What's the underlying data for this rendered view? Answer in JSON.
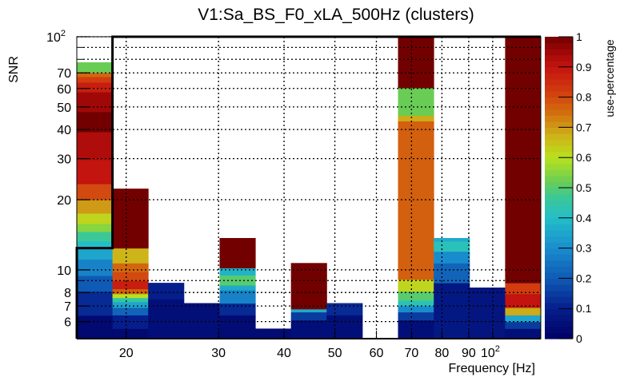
{
  "chart_data": {
    "type": "heatmap",
    "title": "V1:Sa_BS_F0_xLA_500Hz (clusters)",
    "xlabel": "Frequency [Hz]",
    "ylabel": "SNR",
    "zlabel": "use-percentage",
    "x_scale": "log",
    "y_scale": "log",
    "xlim": [
      16.1,
      123.5
    ],
    "ylim": [
      5.07,
      100
    ],
    "zlim": [
      0,
      1
    ],
    "grid": true,
    "x_ticks": [
      {
        "value": 20,
        "label": "20"
      },
      {
        "value": 30,
        "label": "30"
      },
      {
        "value": 40,
        "label": "40"
      },
      {
        "value": 50,
        "label": "50"
      },
      {
        "value": 60,
        "label": "60"
      },
      {
        "value": 70,
        "label": "70"
      },
      {
        "value": 80,
        "label": "80"
      },
      {
        "value": 90,
        "label": "90"
      },
      {
        "value": 100,
        "label": "10",
        "sup": "2"
      }
    ],
    "y_ticks": [
      {
        "value": 6,
        "label": "6"
      },
      {
        "value": 7,
        "label": "7"
      },
      {
        "value": 8,
        "label": "8"
      },
      {
        "value": 10,
        "label": "10"
      },
      {
        "value": 20,
        "label": "20"
      },
      {
        "value": 30,
        "label": "30"
      },
      {
        "value": 40,
        "label": "40"
      },
      {
        "value": 50,
        "label": "50"
      },
      {
        "value": 60,
        "label": "60"
      },
      {
        "value": 70,
        "label": "70"
      },
      {
        "value": 100,
        "label": "10",
        "sup": "2"
      }
    ],
    "z_ticks": [
      "0",
      "0.1",
      "0.2",
      "0.3",
      "0.4",
      "0.5",
      "0.6",
      "0.7",
      "0.8",
      "0.9",
      "1"
    ],
    "x_bin_edges_index": 13,
    "columns": [
      {
        "segments": [
          [
            5.07,
            6.38,
            0.03
          ],
          [
            6.38,
            8.09,
            0.12
          ],
          [
            8.09,
            9.46,
            0.2
          ],
          [
            9.46,
            11.1,
            0.28
          ],
          [
            11.1,
            12.4,
            0.35
          ],
          [
            12.4,
            13.3,
            0.4
          ],
          [
            13.3,
            14.6,
            0.47
          ],
          [
            14.6,
            15.8,
            0.55
          ],
          [
            15.8,
            17.5,
            0.62
          ],
          [
            17.5,
            20.0,
            0.7
          ],
          [
            20.0,
            23.4,
            0.8
          ],
          [
            23.4,
            29.7,
            0.9
          ],
          [
            29.7,
            39.1,
            0.93
          ],
          [
            39.1,
            47.7,
            1.0
          ],
          [
            47.7,
            58.0,
            0.95
          ],
          [
            58.0,
            63.8,
            0.88
          ],
          [
            63.8,
            67.4,
            0.82
          ],
          [
            67.4,
            70.2,
            0.76
          ],
          [
            70.2,
            77.7,
            0.52
          ]
        ]
      },
      {
        "segments": [
          [
            5.07,
            5.6,
            0.03
          ],
          [
            5.6,
            6.4,
            0.1
          ],
          [
            6.4,
            6.9,
            0.22
          ],
          [
            6.9,
            7.3,
            0.35
          ],
          [
            7.3,
            7.6,
            0.45
          ],
          [
            7.6,
            7.9,
            0.6
          ],
          [
            7.9,
            8.3,
            0.77
          ],
          [
            8.3,
            9.0,
            0.88
          ],
          [
            9.0,
            9.8,
            0.8
          ],
          [
            9.8,
            10.7,
            0.76
          ],
          [
            10.7,
            12.4,
            0.67
          ],
          [
            12.4,
            22.3,
            1.0
          ]
        ]
      },
      {
        "segments": [
          [
            5.07,
            7.5,
            0.05
          ],
          [
            7.5,
            8.8,
            0.1
          ]
        ]
      },
      {
        "segments": [
          [
            5.07,
            7.2,
            0.05
          ]
        ]
      },
      {
        "segments": [
          [
            5.07,
            6.4,
            0.04
          ],
          [
            6.4,
            7.2,
            0.12
          ],
          [
            7.2,
            8.2,
            0.28
          ],
          [
            8.2,
            8.6,
            0.36
          ],
          [
            8.6,
            9.5,
            0.5
          ],
          [
            9.5,
            10.2,
            0.38
          ],
          [
            10.2,
            13.7,
            1.0
          ]
        ]
      },
      {
        "segments": [
          [
            5.07,
            5.6,
            0.04
          ]
        ]
      },
      {
        "segments": [
          [
            5.07,
            6.1,
            0.05
          ],
          [
            6.1,
            6.6,
            0.15
          ],
          [
            6.6,
            6.8,
            0.36
          ],
          [
            6.8,
            10.7,
            1.0
          ]
        ]
      },
      {
        "segments": [
          [
            5.07,
            6.4,
            0.05
          ],
          [
            6.4,
            7.2,
            0.12
          ]
        ]
      },
      {
        "segments": []
      },
      {
        "segments": [
          [
            5.07,
            6.1,
            0.05
          ],
          [
            6.1,
            6.6,
            0.15
          ],
          [
            6.6,
            7.0,
            0.3
          ],
          [
            7.0,
            7.4,
            0.42
          ],
          [
            7.4,
            8.1,
            0.5
          ],
          [
            8.1,
            9.1,
            0.62
          ],
          [
            9.1,
            43.5,
            0.77
          ],
          [
            43.5,
            46.0,
            0.68
          ],
          [
            46.0,
            60.4,
            0.52
          ],
          [
            60.4,
            100,
            1.0
          ]
        ]
      },
      {
        "segments": [
          [
            5.07,
            8.8,
            0.08
          ],
          [
            8.8,
            10.7,
            0.22
          ],
          [
            10.7,
            12.0,
            0.3
          ],
          [
            12.0,
            13.3,
            0.42
          ],
          [
            13.3,
            13.7,
            0.36
          ]
        ]
      },
      {
        "segments": [
          [
            5.07,
            8.4,
            0.07
          ]
        ]
      },
      {
        "segments": [
          [
            5.07,
            5.6,
            0.05
          ],
          [
            5.6,
            6.0,
            0.15
          ],
          [
            6.0,
            6.4,
            0.35
          ],
          [
            6.4,
            6.9,
            0.68
          ],
          [
            6.9,
            7.9,
            0.9
          ],
          [
            7.9,
            8.8,
            0.82
          ],
          [
            8.8,
            100,
            1.0
          ]
        ]
      }
    ],
    "contour": "thick black boundary outlining the region left of ~18.5 Hz above SNR ~12.4 and the full upper band"
  }
}
